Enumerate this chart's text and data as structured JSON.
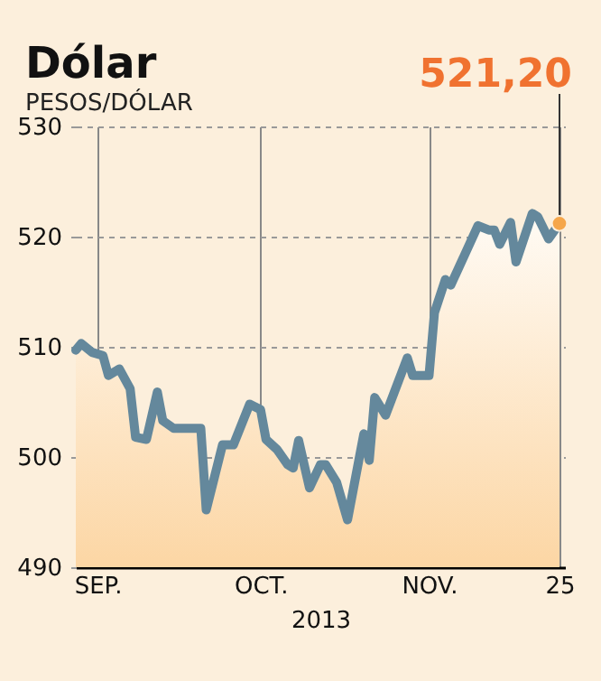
{
  "chart_data": {
    "type": "area",
    "title": "Dólar",
    "subtitle": "PESOS/DÓLAR",
    "xlabel": "2013",
    "x": [
      "2013-08-28",
      "2013-08-29",
      "2013-08-31",
      "2013-09-02",
      "2013-09-03",
      "2013-09-05",
      "2013-09-07",
      "2013-09-08",
      "2013-09-10",
      "2013-09-12",
      "2013-09-13",
      "2013-09-15",
      "2013-09-20",
      "2013-09-21",
      "2013-09-24",
      "2013-09-26",
      "2013-09-29",
      "2013-10-01",
      "2013-10-02",
      "2013-10-04",
      "2013-10-06",
      "2013-10-07",
      "2013-10-08",
      "2013-10-10",
      "2013-10-12",
      "2013-10-13",
      "2013-10-15",
      "2013-10-17",
      "2013-10-20",
      "2013-10-21",
      "2013-10-22",
      "2013-10-24",
      "2013-10-28",
      "2013-10-29",
      "2013-11-01",
      "2013-11-02",
      "2013-11-04",
      "2013-11-05",
      "2013-11-10",
      "2013-11-12",
      "2013-11-13",
      "2013-11-14",
      "2013-11-16",
      "2013-11-17",
      "2013-11-20",
      "2013-11-21",
      "2013-11-23",
      "2013-11-25"
    ],
    "series": [
      {
        "color": "#64889c",
        "values": [
          509.7,
          510.3,
          509.5,
          509.2,
          507.4,
          508,
          506.2,
          501.8,
          501.6,
          505.9,
          503.3,
          502.6,
          502.6,
          495.2,
          501.1,
          501.1,
          504.8,
          504.3,
          501.6,
          500.7,
          499.3,
          499,
          501.5,
          497.2,
          499.3,
          499.3,
          497.7,
          494.3,
          502.1,
          499.7,
          505.4,
          503.8,
          509,
          507.4,
          507.4,
          513.1,
          516.1,
          515.6,
          521,
          520.6,
          520.6,
          519.3,
          521.3,
          517.7,
          522.1,
          521.8,
          519.8,
          521.2
        ]
      }
    ],
    "xlim": [
      "2013-08-28",
      "2013-11-26"
    ],
    "xticks": [
      {
        "value": "2013-09-01",
        "label": "SEP."
      },
      {
        "value": "2013-10-01",
        "label": "OCT."
      },
      {
        "value": "2013-11-01",
        "label": "NOV."
      },
      {
        "value": "2013-11-25",
        "label": "25"
      }
    ],
    "ylim": [
      490,
      530
    ],
    "yticks": [
      490,
      500,
      510,
      520,
      530
    ],
    "grid": true,
    "annotations": [
      {
        "text": "521,20",
        "x": "2013-11-25",
        "y": 521.2
      }
    ]
  }
}
